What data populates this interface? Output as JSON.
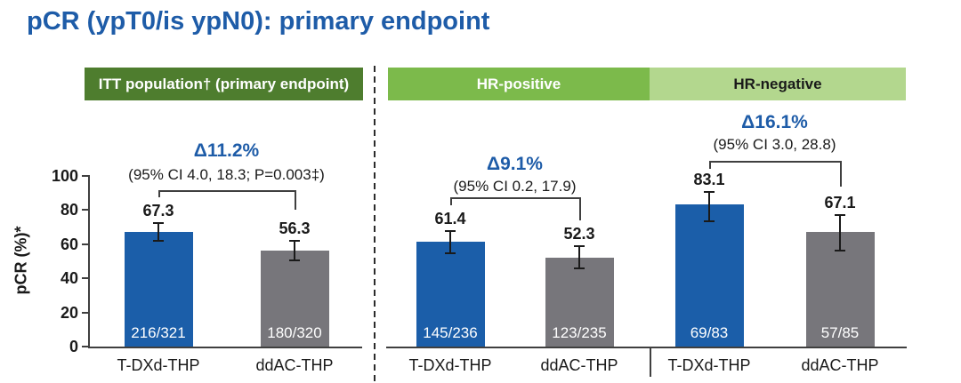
{
  "title": "pCR (ypT0/is ypN0): primary endpoint",
  "panels": [
    {
      "label": "ITT population† (primary endpoint)"
    },
    {
      "label": "HR-positive"
    },
    {
      "label": "HR-negative"
    }
  ],
  "colors": {
    "title_blue": "#1e5ca8",
    "bar_blue": "#1b5ea9",
    "bar_gray": "#77767b",
    "header_dark_green": "#4e7d2e",
    "header_medium_green": "#7cba4b",
    "header_light_green": "#b3d78e",
    "axis": "#3f3f3f",
    "text": "#1a1a1a"
  },
  "chart_data": {
    "type": "bar",
    "title": "pCR (ypT0/is ypN0): primary endpoint",
    "ylabel": "pCR (%)*",
    "xlabel": "",
    "ylim": [
      0,
      100
    ],
    "yticks": [
      0,
      20,
      40,
      60,
      80,
      100
    ],
    "grid": false,
    "legend": "none",
    "series_names": [
      "T-DXd-THP",
      "ddAC-THP"
    ],
    "groups": [
      {
        "name": "ITT population† (primary endpoint)",
        "delta": "Δ11.2%",
        "ci_text": "(95% CI 4.0, 18.3; P=0.003‡)",
        "bars": [
          {
            "label": "T-DXd-THP",
            "value": 67.3,
            "fraction": "216/321",
            "ci_low": 61.8,
            "ci_high": 72.4
          },
          {
            "label": "ddAC-THP",
            "value": 56.3,
            "fraction": "180/320",
            "ci_low": 50.7,
            "ci_high": 61.8
          }
        ]
      },
      {
        "name": "HR-positive",
        "delta": "Δ9.1%",
        "ci_text": "(95% CI 0.2, 17.9)",
        "bars": [
          {
            "label": "T-DXd-THP",
            "value": 61.4,
            "fraction": "145/236",
            "ci_low": 54.9,
            "ci_high": 67.6
          },
          {
            "label": "ddAC-THP",
            "value": 52.3,
            "fraction": "123/235",
            "ci_low": 45.7,
            "ci_high": 58.9
          }
        ]
      },
      {
        "name": "HR-negative",
        "delta": "Δ16.1%",
        "ci_text": "(95% CI 3.0, 28.8)",
        "bars": [
          {
            "label": "T-DXd-THP",
            "value": 83.1,
            "fraction": "69/83",
            "ci_low": 73.3,
            "ci_high": 90.5
          },
          {
            "label": "ddAC-THP",
            "value": 67.1,
            "fraction": "57/85",
            "ci_low": 56.0,
            "ci_high": 76.9
          }
        ]
      }
    ]
  }
}
